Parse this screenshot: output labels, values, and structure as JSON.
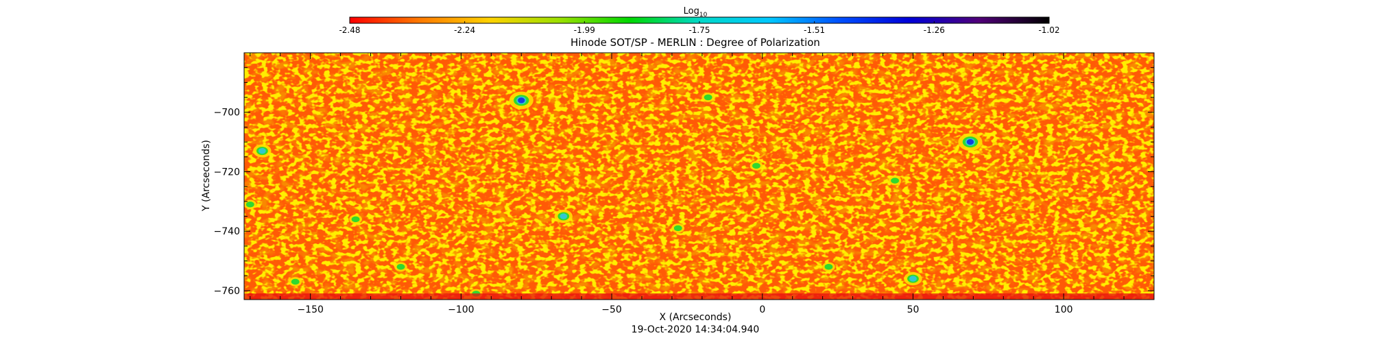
{
  "colorbar": {
    "label_main": "Log",
    "label_sub": "10",
    "ticks": [
      "-2.48",
      "-2.24",
      "-1.99",
      "-1.75",
      "-1.51",
      "-1.26",
      "-1.02"
    ],
    "range": [
      -2.48,
      -1.02
    ],
    "colors": [
      "#ff0000",
      "#ff7a00",
      "#ffd200",
      "#9be000",
      "#00d800",
      "#00d8c8",
      "#00c8ff",
      "#0050ff",
      "#0000d8",
      "#500078",
      "#000000"
    ]
  },
  "chart_data": {
    "type": "heatmap",
    "title": "Hinode SOT/SP - MERLIN : Degree of Polarization",
    "xlabel": "X (Arcseconds)",
    "ylabel": "Y (Arcseconds)",
    "xlim": [
      -172,
      130
    ],
    "ylim": [
      -763,
      -680
    ],
    "xticks": [
      -150,
      -100,
      -50,
      0,
      50,
      100
    ],
    "yticks": [
      -700,
      -720,
      -740,
      -760
    ],
    "value_scale": "log10",
    "value_range": [
      -2.48,
      -1.02
    ],
    "background_level": -2.35,
    "colors": {
      "low": "#ff4000",
      "mid": "#ff9a00",
      "yellow": "#ffe000",
      "green": "#30d830",
      "cyan": "#30c8d0",
      "blue": "#1040e0"
    },
    "features": [
      {
        "x": 69,
        "y": -710,
        "level": "high"
      },
      {
        "x": -80,
        "y": -696,
        "level": "high"
      },
      {
        "x": -166,
        "y": -713,
        "level": "medium"
      },
      {
        "x": -66,
        "y": -735,
        "level": "medium"
      },
      {
        "x": 50,
        "y": -756,
        "level": "medium"
      },
      {
        "x": -18,
        "y": -695,
        "level": "low"
      },
      {
        "x": -155,
        "y": -757,
        "level": "low"
      },
      {
        "x": -135,
        "y": -736,
        "level": "low"
      },
      {
        "x": 44,
        "y": -723,
        "level": "low"
      },
      {
        "x": -170,
        "y": -731,
        "level": "low"
      },
      {
        "x": -28,
        "y": -739,
        "level": "low"
      },
      {
        "x": -2,
        "y": -718,
        "level": "low"
      },
      {
        "x": -120,
        "y": -752,
        "level": "low"
      },
      {
        "x": 22,
        "y": -752,
        "level": "low"
      },
      {
        "x": -95,
        "y": -761,
        "level": "low"
      }
    ]
  },
  "footer": {
    "timestamp": "19-Oct-2020 14:34:04.940"
  }
}
